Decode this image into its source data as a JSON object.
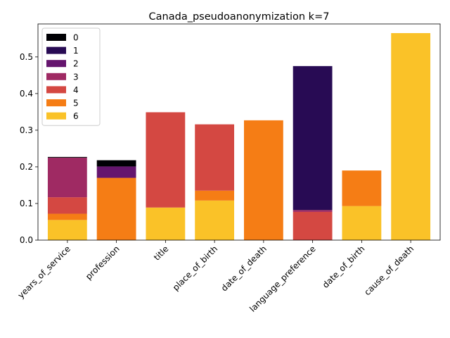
{
  "chart_data": {
    "type": "bar",
    "stacked": true,
    "title": "Canada_pseudoanonymization k=7",
    "xlabel": "",
    "ylabel": "",
    "ylim": [
      0,
      0.59
    ],
    "yticks": [
      "0.0",
      "0.1",
      "0.2",
      "0.3",
      "0.4",
      "0.5"
    ],
    "categories": [
      "years_of_service",
      "profession",
      "title",
      "place_of_birth",
      "date_of_death",
      "language_preference",
      "date_of_birth",
      "cause_of_death"
    ],
    "legend_position": "top-left",
    "grid": false,
    "series": [
      {
        "name": "0",
        "color": "#000004",
        "values": [
          0.002,
          0.017,
          0,
          0,
          0,
          0,
          0,
          0
        ]
      },
      {
        "name": "1",
        "color": "#280b54",
        "values": [
          0,
          0,
          0,
          0,
          0,
          0.393,
          0,
          0
        ]
      },
      {
        "name": "2",
        "color": "#65156e",
        "values": [
          0,
          0.031,
          0,
          0,
          0,
          0,
          0,
          0
        ]
      },
      {
        "name": "3",
        "color": "#9f2a63",
        "values": [
          0.108,
          0,
          0,
          0,
          0,
          0.005,
          0,
          0
        ]
      },
      {
        "name": "4",
        "color": "#d44842",
        "values": [
          0.045,
          0,
          0.26,
          0.181,
          0,
          0.077,
          0,
          0
        ]
      },
      {
        "name": "5",
        "color": "#f57d15",
        "values": [
          0.017,
          0.17,
          0,
          0.027,
          0.327,
          0,
          0.097,
          0
        ]
      },
      {
        "name": "6",
        "color": "#fac228",
        "values": [
          0.055,
          0,
          0.089,
          0.108,
          0,
          0,
          0.093,
          0.565
        ]
      }
    ]
  }
}
